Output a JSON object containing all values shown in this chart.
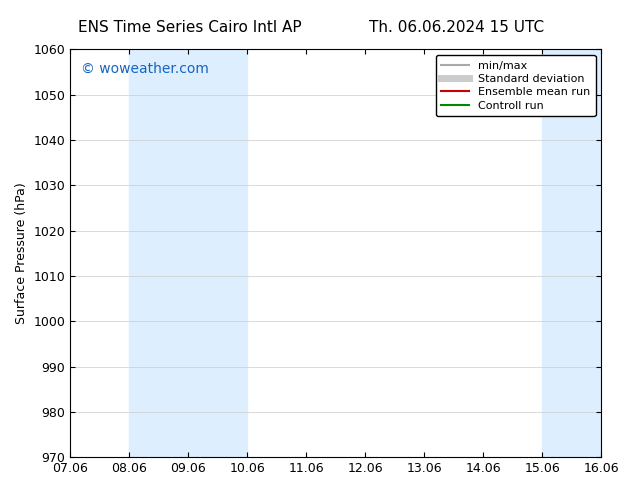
{
  "title_left": "ENS Time Series Cairo Intl AP",
  "title_right": "Th. 06.06.2024 15 UTC",
  "ylabel": "Surface Pressure (hPa)",
  "watermark": "© woweather.com",
  "watermark_color": "#1565C0",
  "ylim": [
    970,
    1060
  ],
  "yticks": [
    970,
    980,
    990,
    1000,
    1010,
    1020,
    1030,
    1040,
    1050,
    1060
  ],
  "xtick_labels": [
    "07.06",
    "08.06",
    "09.06",
    "10.06",
    "11.06",
    "12.06",
    "13.06",
    "14.06",
    "15.06",
    "16.06"
  ],
  "xtick_positions": [
    0,
    1,
    2,
    3,
    4,
    5,
    6,
    7,
    8,
    9
  ],
  "bg_color": "#ffffff",
  "plot_bg_color": "#ffffff",
  "shade_regions": [
    {
      "x_start": 1,
      "x_end": 3,
      "color": "#ddeeff"
    },
    {
      "x_start": 8,
      "x_end": 9,
      "color": "#ddeeff"
    }
  ],
  "legend_entries": [
    {
      "label": "min/max",
      "color": "#aaaaaa",
      "lw": 1.5,
      "style": "solid"
    },
    {
      "label": "Standard deviation",
      "color": "#cccccc",
      "lw": 5,
      "style": "solid"
    },
    {
      "label": "Ensemble mean run",
      "color": "#cc0000",
      "lw": 1.5,
      "style": "solid"
    },
    {
      "label": "Controll run",
      "color": "#008800",
      "lw": 1.5,
      "style": "solid"
    }
  ],
  "font_size_title": 11,
  "font_size_axis": 9,
  "font_size_legend": 8,
  "font_size_watermark": 10,
  "grid_color": "#cccccc",
  "tick_color": "#000000",
  "spine_color": "#000000"
}
